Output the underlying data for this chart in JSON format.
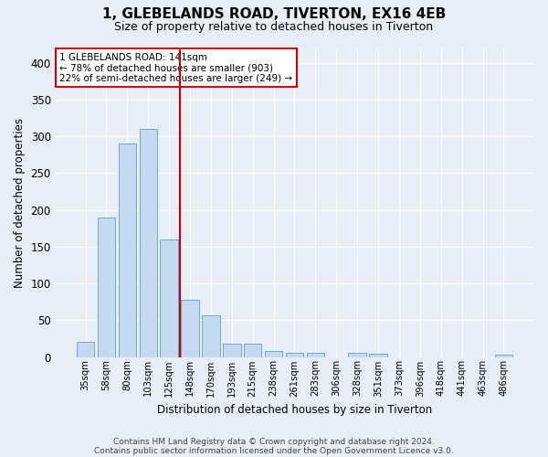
{
  "title_line1": "1, GLEBELANDS ROAD, TIVERTON, EX16 4EB",
  "title_line2": "Size of property relative to detached houses in Tiverton",
  "xlabel": "Distribution of detached houses by size in Tiverton",
  "ylabel": "Number of detached properties",
  "footer_line1": "Contains HM Land Registry data © Crown copyright and database right 2024.",
  "footer_line2": "Contains public sector information licensed under the Open Government Licence v3.0.",
  "bar_labels": [
    "35sqm",
    "58sqm",
    "80sqm",
    "103sqm",
    "125sqm",
    "148sqm",
    "170sqm",
    "193sqm",
    "215sqm",
    "238sqm",
    "261sqm",
    "283sqm",
    "306sqm",
    "328sqm",
    "351sqm",
    "373sqm",
    "396sqm",
    "418sqm",
    "441sqm",
    "463sqm",
    "486sqm"
  ],
  "bar_values": [
    20,
    190,
    290,
    310,
    160,
    78,
    57,
    18,
    18,
    8,
    5,
    5,
    0,
    5,
    4,
    0,
    0,
    0,
    0,
    0,
    3
  ],
  "bar_color": "#c5d9f0",
  "bar_edge_color": "#6aaad4",
  "vline_x": 4.5,
  "vline_color": "#cc0000",
  "annotation_text": "1 GLEBELANDS ROAD: 141sqm\n← 78% of detached houses are smaller (903)\n22% of semi-detached houses are larger (249) →",
  "annotation_box_facecolor": "white",
  "annotation_box_edgecolor": "#cc0000",
  "ylim": [
    0,
    420
  ],
  "yticks": [
    0,
    50,
    100,
    150,
    200,
    250,
    300,
    350,
    400
  ],
  "bg_color": "#e8eef8",
  "grid_color": "#d0d8e8"
}
